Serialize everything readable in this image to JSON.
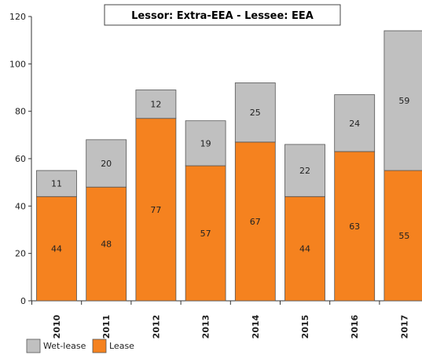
{
  "chart_data": {
    "type": "bar",
    "stacked": true,
    "title": "Lessor: Extra-EEA - Lessee: EEA",
    "xlabel": "",
    "ylabel": "",
    "categories": [
      "2010",
      "2011",
      "2012",
      "2013",
      "2014",
      "2015",
      "2016",
      "2017"
    ],
    "series": [
      {
        "name": "Lease",
        "color": "#f5821f",
        "values": [
          44,
          48,
          77,
          57,
          67,
          44,
          63,
          55
        ]
      },
      {
        "name": "Wet-lease",
        "color": "#c0c0c0",
        "values": [
          11,
          20,
          12,
          19,
          25,
          22,
          24,
          59
        ]
      }
    ],
    "ylim": [
      0,
      120
    ],
    "yticks": [
      0,
      20,
      40,
      60,
      80,
      100,
      120
    ],
    "grid": false,
    "legend_position": "bottom-left",
    "legend_order": [
      "Wet-lease",
      "Lease"
    ]
  }
}
